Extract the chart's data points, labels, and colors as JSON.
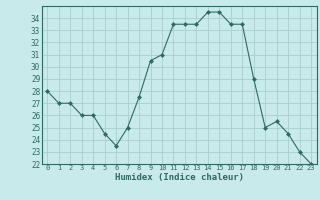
{
  "x": [
    0,
    1,
    2,
    3,
    4,
    5,
    6,
    7,
    8,
    9,
    10,
    11,
    12,
    13,
    14,
    15,
    16,
    17,
    18,
    19,
    20,
    21,
    22,
    23
  ],
  "y": [
    28,
    27,
    27,
    26,
    26,
    24.5,
    23.5,
    25,
    27.5,
    30.5,
    31,
    33.5,
    33.5,
    33.5,
    34.5,
    34.5,
    33.5,
    33.5,
    29,
    25,
    25.5,
    24.5,
    23,
    22
  ],
  "line_color": "#2d6b60",
  "marker_color": "#2d6b60",
  "bg_color": "#c8eaea",
  "grid_color": "#aacece",
  "xlabel": "Humidex (Indice chaleur)",
  "ylim": [
    22,
    35
  ],
  "xlim": [
    -0.5,
    23.5
  ],
  "yticks": [
    22,
    23,
    24,
    25,
    26,
    27,
    28,
    29,
    30,
    31,
    32,
    33,
    34
  ],
  "xticks": [
    0,
    1,
    2,
    3,
    4,
    5,
    6,
    7,
    8,
    9,
    10,
    11,
    12,
    13,
    14,
    15,
    16,
    17,
    18,
    19,
    20,
    21,
    22,
    23
  ]
}
